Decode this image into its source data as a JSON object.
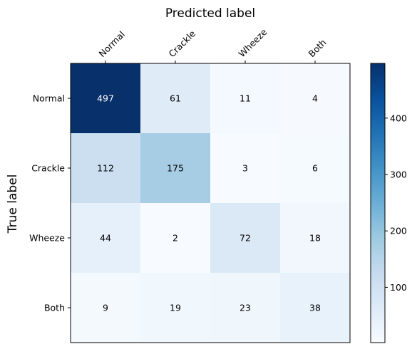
{
  "chart_data": {
    "type": "heatmap",
    "title": "Predicted label",
    "xlabel": "Predicted label",
    "ylabel": "True label",
    "x_categories": [
      "Normal",
      "Crackle",
      "Wheeze",
      "Both"
    ],
    "y_categories": [
      "Normal",
      "Crackle",
      "Wheeze",
      "Both"
    ],
    "values": [
      [
        497,
        61,
        11,
        4
      ],
      [
        112,
        175,
        3,
        6
      ],
      [
        44,
        2,
        72,
        18
      ],
      [
        9,
        19,
        23,
        38
      ]
    ],
    "colormap": "Blues",
    "colorbar": {
      "min": 2,
      "max": 497,
      "ticks": [
        100,
        200,
        300,
        400
      ]
    },
    "grid": false,
    "xaxis_position": "top"
  }
}
